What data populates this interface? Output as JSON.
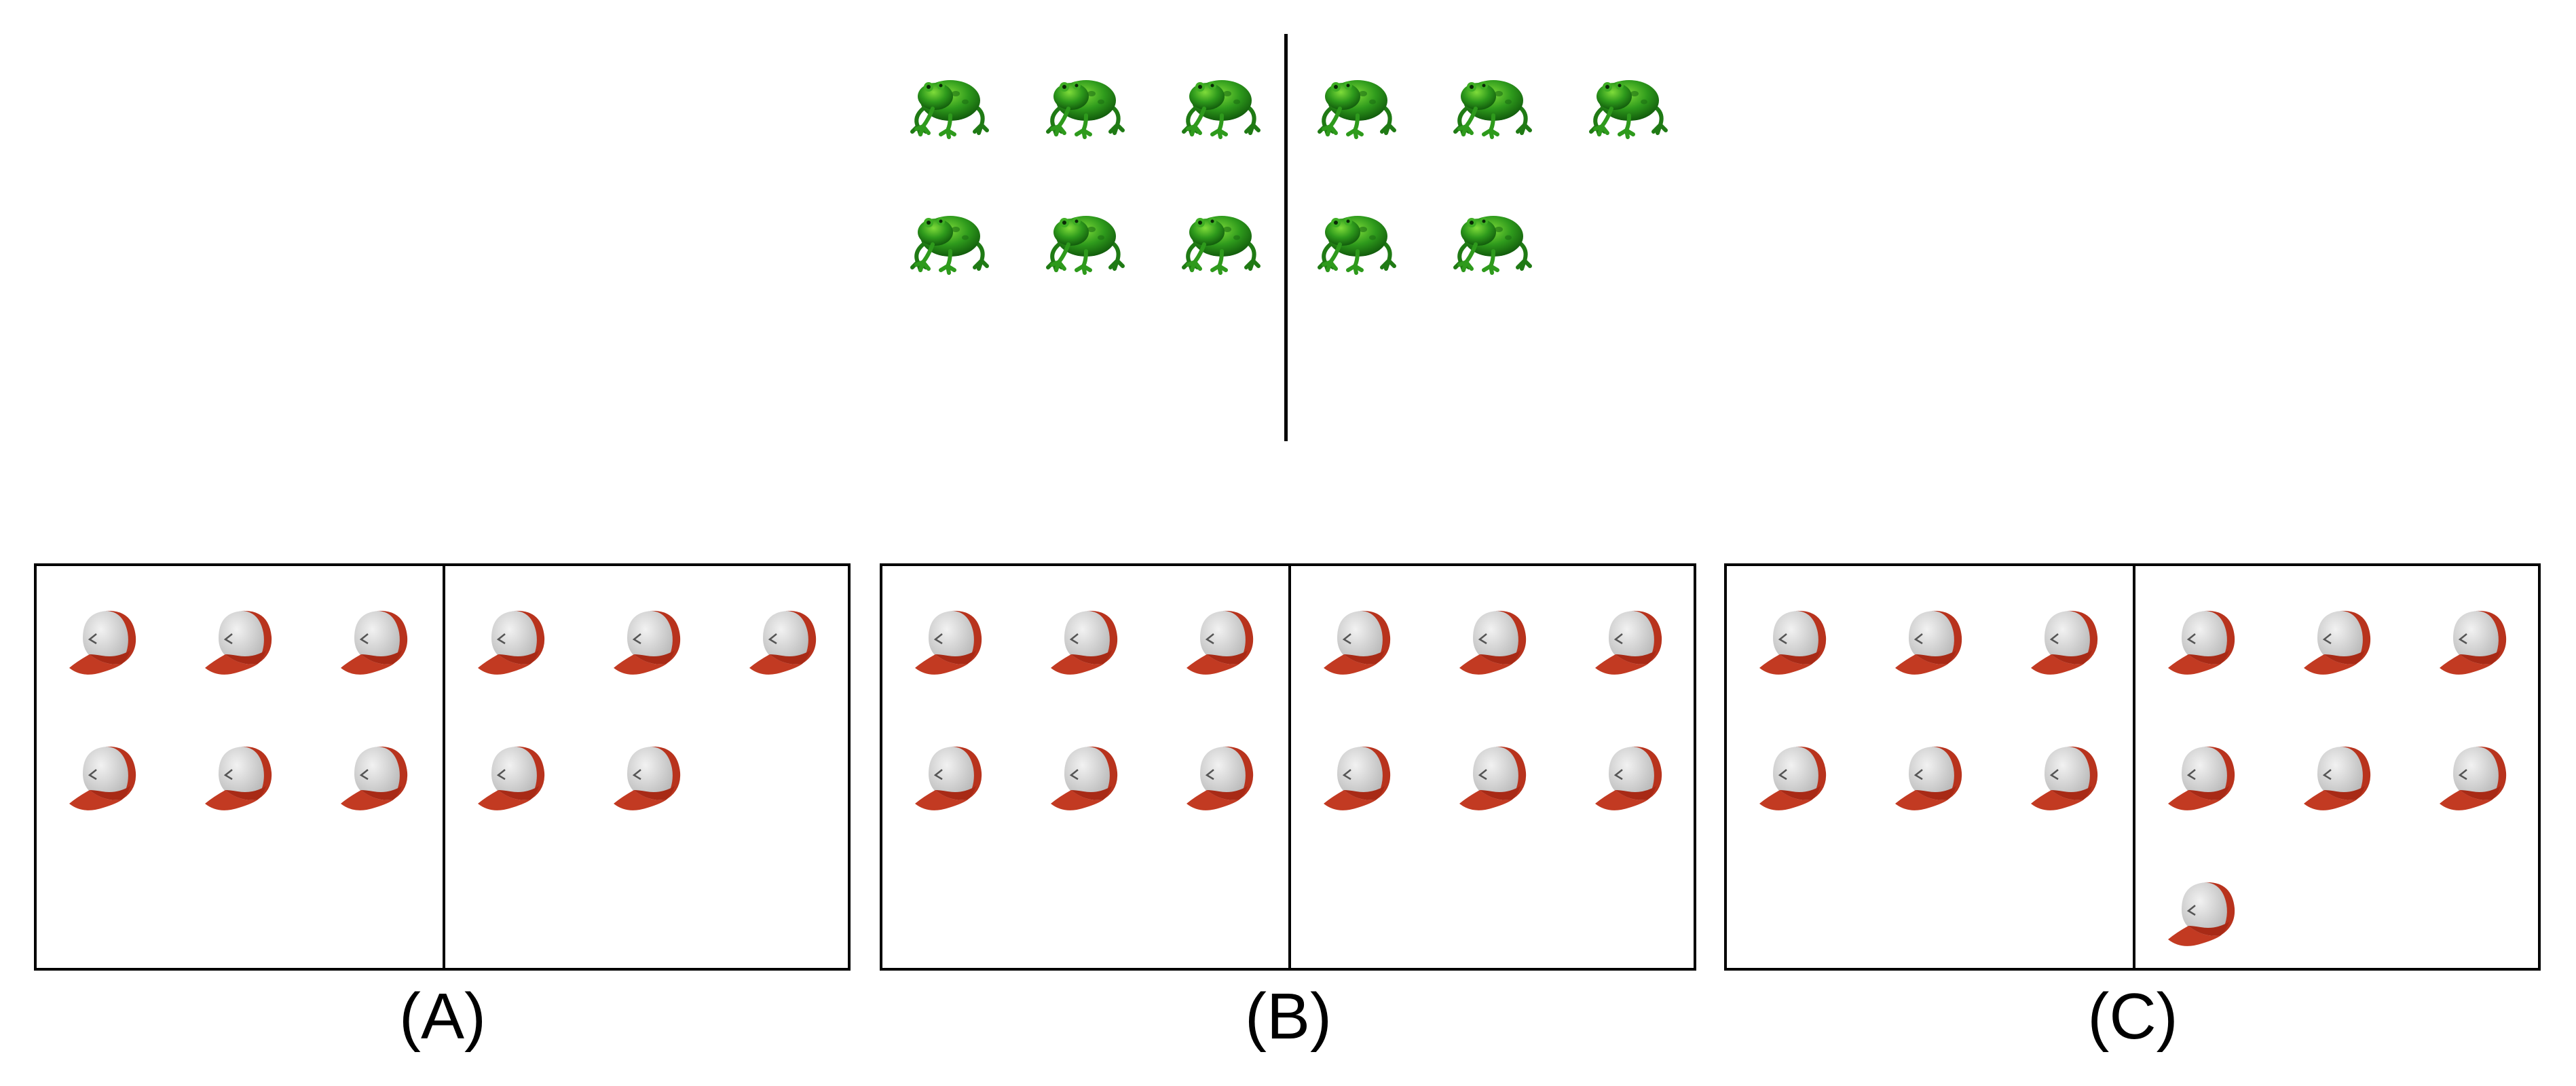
{
  "question": {
    "icon": "frog-icon",
    "left_count": 6,
    "right_count": 5
  },
  "options": [
    {
      "label": "(A)",
      "icon": "cap-icon",
      "left_count": 6,
      "right_count": 5
    },
    {
      "label": "(B)",
      "icon": "cap-icon",
      "left_count": 6,
      "right_count": 6
    },
    {
      "label": "(C)",
      "icon": "cap-icon",
      "left_count": 6,
      "right_count": 7
    }
  ],
  "colors": {
    "frog_green": "#2e9a1c",
    "cap_red": "#c23a22",
    "cap_white": "#dcdcdc",
    "line": "#000000"
  }
}
